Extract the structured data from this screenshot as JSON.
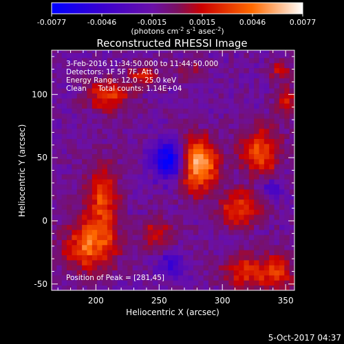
{
  "colorbar": {
    "ticks": [
      "-0.0077",
      "-0.0046",
      "-0.0015",
      "0.0015",
      "0.0046",
      "0.0077"
    ],
    "unit_parts": {
      "a": "(photons cm",
      "a_sup": "-2",
      "b": " s",
      "b_sup": "-1",
      "c": " asec",
      "c_sup": "-2",
      "d": ")"
    },
    "stops": [
      {
        "v": -0.0077,
        "color": "#0000ff"
      },
      {
        "v": -0.0046,
        "color": "#3a00d0"
      },
      {
        "v": -0.0015,
        "color": "#6a10a8"
      },
      {
        "v": 0.0,
        "color": "#7a1060"
      },
      {
        "v": 0.0015,
        "color": "#cc0000"
      },
      {
        "v": 0.0046,
        "color": "#ff6a00"
      },
      {
        "v": 0.0077,
        "color": "#ffffff"
      }
    ]
  },
  "annotation": {
    "line1": "3-Feb-2016 11:34:50.000 to 11:44:50.000",
    "line2": "Detectors: 1F 5F 7F, Att 0",
    "line3": "Energy Range: 12.0 - 25.0 keV",
    "line4": "Clean     Total counts: 1.14E+04",
    "peak": "Position of Peak = [281,45]"
  },
  "footer_timestamp": "5-Oct-2017 04:37",
  "chart_data": {
    "type": "heatmap",
    "title": "Reconstructed RHESSI Image",
    "xlabel": "Heliocentric X (arcsec)",
    "ylabel": "Heliocentric Y (arcsec)",
    "xlim": [
      165,
      357
    ],
    "ylim": [
      -55,
      135
    ],
    "xticks": [
      200,
      250,
      300,
      350
    ],
    "yticks": [
      -50,
      0,
      50,
      100
    ],
    "grid": false,
    "value_range": [
      -0.0077,
      0.0077
    ],
    "peak": {
      "x": 281,
      "y": 45,
      "value": 0.0077
    },
    "sources": [
      {
        "x": 281,
        "y": 45,
        "sx": 10,
        "sy": 14,
        "value": 0.0077
      },
      {
        "x": 258,
        "y": 48,
        "sx": 9,
        "sy": 10,
        "value": -0.007
      },
      {
        "x": 205,
        "y": 15,
        "sx": 9,
        "sy": 20,
        "value": 0.0042
      },
      {
        "x": 195,
        "y": -20,
        "sx": 14,
        "sy": 14,
        "value": 0.005
      },
      {
        "x": 210,
        "y": 100,
        "sx": 12,
        "sy": 9,
        "value": 0.004
      },
      {
        "x": 238,
        "y": 115,
        "sx": 8,
        "sy": 6,
        "value": 0.003
      },
      {
        "x": 330,
        "y": 55,
        "sx": 11,
        "sy": 13,
        "value": 0.0046
      },
      {
        "x": 315,
        "y": 10,
        "sx": 12,
        "sy": 10,
        "value": 0.0042
      },
      {
        "x": 320,
        "y": -40,
        "sx": 14,
        "sy": 9,
        "value": 0.0038
      },
      {
        "x": 345,
        "y": -40,
        "sx": 8,
        "sy": 10,
        "value": 0.0035
      },
      {
        "x": 350,
        "y": 95,
        "sx": 6,
        "sy": 9,
        "value": 0.003
      },
      {
        "x": 345,
        "y": 120,
        "sx": 6,
        "sy": 6,
        "value": 0.0025
      },
      {
        "x": 248,
        "y": -10,
        "sx": 9,
        "sy": 9,
        "value": 0.0028
      },
      {
        "x": 260,
        "y": -35,
        "sx": 7,
        "sy": 7,
        "value": -0.0035
      },
      {
        "x": 340,
        "y": 25,
        "sx": 6,
        "sy": 6,
        "value": -0.003
      },
      {
        "x": 275,
        "y": 120,
        "sx": 10,
        "sy": 6,
        "value": 0.0015
      }
    ]
  }
}
